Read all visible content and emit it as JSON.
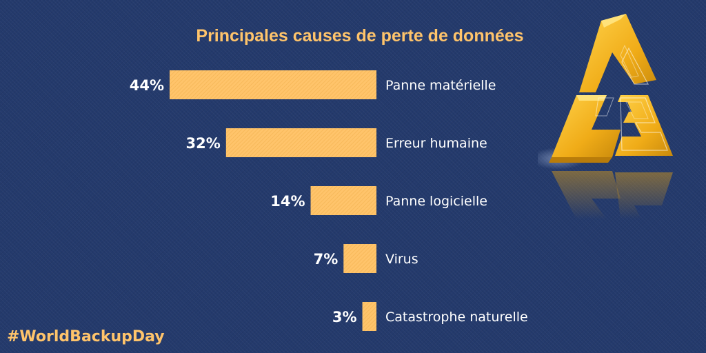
{
  "colors": {
    "background": "#243a6c",
    "bar": "#ffc46b",
    "title": "#ffc46b",
    "text": "#ffffff",
    "hashtag": "#ffc46b",
    "logo": "#f2b21e"
  },
  "hashtag": "#WorldBackupDay",
  "logo": {
    "icon": "ce3-triangle-logo"
  },
  "chart_data": {
    "type": "bar",
    "orientation": "horizontal",
    "title": "Principales causes de perte de données",
    "categories": [
      "Panne matérielle",
      "Erreur humaine",
      "Panne logicielle",
      "Virus",
      "Catastrophe naturelle"
    ],
    "values": [
      44,
      32,
      14,
      7,
      3
    ],
    "data_labels": [
      "44%",
      "32%",
      "14%",
      "7%",
      "3%"
    ],
    "unit": "%",
    "grid": false,
    "legend": "none"
  }
}
